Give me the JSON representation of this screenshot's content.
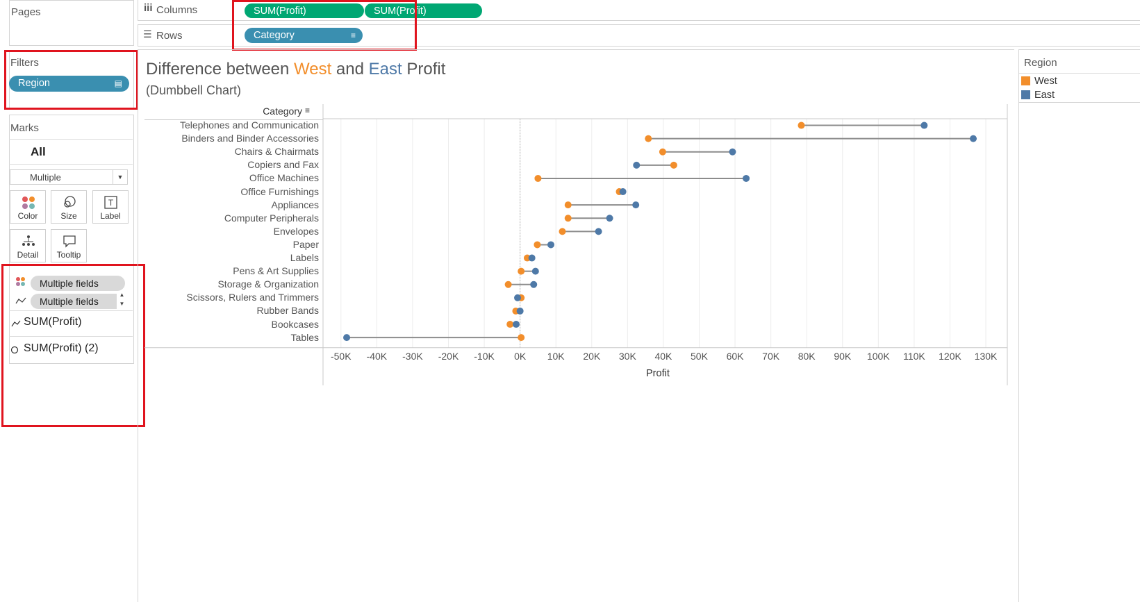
{
  "shelves": {
    "pages_label": "Pages",
    "columns_label": "Columns",
    "rows_label": "Rows",
    "columns_pills": [
      "SUM(Profit)",
      "SUM(Profit)"
    ],
    "rows_pill": "Category"
  },
  "filters": {
    "title": "Filters",
    "pill": "Region"
  },
  "marks": {
    "title": "Marks",
    "all_label": "All",
    "mark_type": "Multiple",
    "buttons": [
      "Color",
      "Size",
      "Label",
      "Detail",
      "Tooltip"
    ],
    "field_pills": [
      "Multiple fields",
      "Multiple fields"
    ],
    "sub_cards": [
      "SUM(Profit)",
      "SUM(Profit) (2)"
    ]
  },
  "legend": {
    "title": "Region",
    "items": [
      {
        "label": "West",
        "color": "#f28e2b"
      },
      {
        "label": "East",
        "color": "#4e79a7"
      }
    ]
  },
  "chart_data": {
    "type": "scatter",
    "title_parts": [
      "Difference between ",
      "West",
      " and ",
      "East",
      " Profit"
    ],
    "subtitle": "(Dumbbell Chart)",
    "category_header": "Category",
    "xlabel": "Profit",
    "xlim": [
      -55000,
      136000
    ],
    "x_ticks": [
      -50000,
      -40000,
      -30000,
      -20000,
      -10000,
      0,
      10000,
      20000,
      30000,
      40000,
      50000,
      60000,
      70000,
      80000,
      90000,
      100000,
      110000,
      120000,
      130000
    ],
    "x_tick_labels": [
      "-50K",
      "-40K",
      "-30K",
      "-20K",
      "-10K",
      "0K",
      "10K",
      "20K",
      "30K",
      "40K",
      "50K",
      "60K",
      "70K",
      "80K",
      "90K",
      "100K",
      "110K",
      "120K",
      "130K"
    ],
    "grid": true,
    "categories": [
      "Telephones and Communication",
      "Binders and Binder Accessories",
      "Chairs & Chairmats",
      "Copiers and Fax",
      "Office Machines",
      "Office Furnishings",
      "Appliances",
      "Computer Peripherals",
      "Envelopes",
      "Paper",
      "Labels",
      "Pens & Art Supplies",
      "Storage & Organization",
      "Scissors, Rulers and Trimmers",
      "Rubber Bands",
      "Bookcases",
      "Tables"
    ],
    "series": [
      {
        "name": "West",
        "color": "#f28e2b",
        "values": [
          78500,
          35800,
          39800,
          42900,
          5000,
          27700,
          13400,
          13400,
          11800,
          4800,
          2000,
          300,
          -3300,
          300,
          -1200,
          -2800,
          300
        ]
      },
      {
        "name": "East",
        "color": "#4e79a7",
        "values": [
          112800,
          126500,
          59300,
          32500,
          63100,
          28700,
          32300,
          25000,
          21900,
          8600,
          3300,
          4300,
          3800,
          -700,
          0,
          -1100,
          -48400
        ]
      }
    ]
  }
}
